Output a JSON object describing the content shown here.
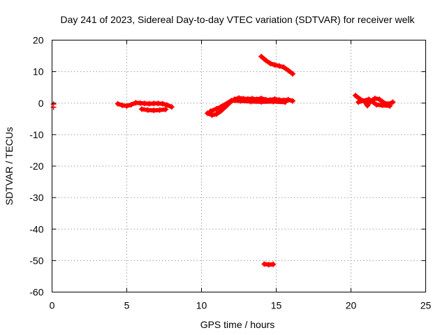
{
  "chart_data": {
    "type": "scatter",
    "title": "Day 241 of 2023, Sidereal Day-to-day VTEC variation (SDTVAR) for receiver welk",
    "xlabel": "GPS time / hours",
    "ylabel": "SDTVAR / TECUs",
    "xlim": [
      0,
      25
    ],
    "ylim": [
      -60,
      20
    ],
    "xticks": [
      0,
      5,
      10,
      15,
      20,
      25
    ],
    "yticks": [
      -60,
      -50,
      -40,
      -30,
      -20,
      -10,
      0,
      10,
      20
    ],
    "grid": true,
    "legend": "none",
    "marker_color": "#ff0000",
    "series": [
      {
        "points": [
          [
            0.1,
            -0.3
          ],
          [
            0.1,
            -1.3
          ],
          [
            4.4,
            -0.2
          ],
          [
            4.7,
            -0.7
          ],
          [
            5.0,
            -0.9
          ],
          [
            5.3,
            -0.5
          ],
          [
            5.6,
            0.1
          ],
          [
            5.9,
            0.0
          ],
          [
            6.2,
            -0.1
          ],
          [
            6.5,
            -0.2
          ],
          [
            6.8,
            -0.1
          ],
          [
            7.1,
            -0.1
          ],
          [
            7.4,
            -0.2
          ],
          [
            7.7,
            -0.6
          ],
          [
            8.0,
            -1.2
          ],
          [
            6.0,
            -1.9
          ],
          [
            6.4,
            -2.2
          ],
          [
            6.8,
            -2.3
          ],
          [
            7.2,
            -2.2
          ],
          [
            7.6,
            -2.0
          ],
          [
            10.4,
            -3.2
          ],
          [
            10.7,
            -3.8
          ],
          [
            11.0,
            -3.5
          ],
          [
            11.3,
            -2.5
          ],
          [
            11.6,
            -1.2
          ],
          [
            11.9,
            0.2
          ],
          [
            12.2,
            1.2
          ],
          [
            12.5,
            1.6
          ],
          [
            12.8,
            1.4
          ],
          [
            13.1,
            1.3
          ],
          [
            13.4,
            1.4
          ],
          [
            13.7,
            1.2
          ],
          [
            14.0,
            1.5
          ],
          [
            14.3,
            1.1
          ],
          [
            14.6,
            1.0
          ],
          [
            14.9,
            1.3
          ],
          [
            15.2,
            1.0
          ],
          [
            15.5,
            0.9
          ],
          [
            15.8,
            1.1
          ],
          [
            16.1,
            0.7
          ],
          [
            10.6,
            -2.6
          ],
          [
            11.0,
            -1.8
          ],
          [
            11.3,
            -1.2
          ],
          [
            12.0,
            0.8
          ],
          [
            12.6,
            0.7
          ],
          [
            13.3,
            0.5
          ],
          [
            14.0,
            0.4
          ],
          [
            14.8,
            0.5
          ],
          [
            15.6,
            0.3
          ],
          [
            14.0,
            14.8
          ],
          [
            14.3,
            13.6
          ],
          [
            14.6,
            12.6
          ],
          [
            14.9,
            12.1
          ],
          [
            15.2,
            11.8
          ],
          [
            15.5,
            11.4
          ],
          [
            15.8,
            10.4
          ],
          [
            16.1,
            9.3
          ],
          [
            14.2,
            -51.1
          ],
          [
            14.5,
            -51.3
          ],
          [
            14.8,
            -51.2
          ],
          [
            20.3,
            2.4
          ],
          [
            20.6,
            1.3
          ],
          [
            20.9,
            0.6
          ],
          [
            21.1,
            -0.8
          ],
          [
            21.3,
            0.6
          ],
          [
            21.6,
            1.5
          ],
          [
            21.9,
            1.2
          ],
          [
            22.2,
            0.1
          ],
          [
            22.5,
            -0.3
          ],
          [
            22.8,
            0.3
          ],
          [
            20.5,
            0.3
          ],
          [
            21.2,
            1.2
          ],
          [
            21.7,
            -0.5
          ],
          [
            22.1,
            -0.7
          ],
          [
            22.6,
            -0.9
          ]
        ]
      }
    ],
    "lines": [
      [
        [
          4.4,
          -0.2
        ],
        [
          4.7,
          -0.7
        ],
        [
          5.0,
          -0.9
        ],
        [
          5.3,
          -0.5
        ],
        [
          5.6,
          0.1
        ],
        [
          5.9,
          0.0
        ],
        [
          6.2,
          -0.1
        ],
        [
          6.5,
          -0.2
        ],
        [
          6.8,
          -0.1
        ],
        [
          7.1,
          -0.1
        ],
        [
          7.4,
          -0.2
        ],
        [
          7.7,
          -0.6
        ],
        [
          8.0,
          -1.2
        ]
      ],
      [
        [
          6.0,
          -1.9
        ],
        [
          6.4,
          -2.2
        ],
        [
          6.8,
          -2.3
        ],
        [
          7.2,
          -2.2
        ],
        [
          7.6,
          -2.0
        ]
      ],
      [
        [
          10.4,
          -3.2
        ],
        [
          10.7,
          -3.8
        ],
        [
          11.0,
          -3.5
        ],
        [
          11.3,
          -2.5
        ],
        [
          11.6,
          -1.2
        ],
        [
          11.9,
          0.2
        ],
        [
          12.2,
          1.2
        ],
        [
          12.5,
          1.6
        ],
        [
          12.8,
          1.4
        ],
        [
          13.1,
          1.3
        ],
        [
          13.4,
          1.4
        ],
        [
          13.7,
          1.2
        ],
        [
          14.0,
          1.5
        ],
        [
          14.3,
          1.1
        ],
        [
          14.6,
          1.0
        ],
        [
          14.9,
          1.3
        ],
        [
          15.2,
          1.0
        ],
        [
          15.5,
          0.9
        ],
        [
          15.8,
          1.1
        ],
        [
          16.1,
          0.7
        ]
      ],
      [
        [
          10.6,
          -2.6
        ],
        [
          11.0,
          -1.8
        ],
        [
          11.3,
          -1.2
        ],
        [
          12.0,
          0.8
        ],
        [
          12.6,
          0.7
        ],
        [
          13.3,
          0.5
        ],
        [
          14.0,
          0.4
        ],
        [
          14.8,
          0.5
        ],
        [
          15.6,
          0.3
        ]
      ],
      [
        [
          14.0,
          14.8
        ],
        [
          14.3,
          13.6
        ],
        [
          14.6,
          12.6
        ],
        [
          14.9,
          12.1
        ],
        [
          15.2,
          11.8
        ],
        [
          15.5,
          11.4
        ],
        [
          15.8,
          10.4
        ],
        [
          16.1,
          9.3
        ]
      ],
      [
        [
          14.2,
          -51.1
        ],
        [
          14.5,
          -51.3
        ],
        [
          14.8,
          -51.2
        ]
      ],
      [
        [
          20.3,
          2.4
        ],
        [
          20.6,
          1.3
        ],
        [
          20.9,
          0.6
        ],
        [
          21.1,
          -0.8
        ],
        [
          21.3,
          0.6
        ],
        [
          21.6,
          1.5
        ],
        [
          21.9,
          1.2
        ],
        [
          22.2,
          0.1
        ],
        [
          22.5,
          -0.3
        ],
        [
          22.8,
          0.3
        ]
      ],
      [
        [
          20.5,
          0.3
        ],
        [
          21.2,
          1.2
        ],
        [
          21.7,
          -0.5
        ],
        [
          22.1,
          -0.7
        ],
        [
          22.6,
          -0.9
        ]
      ]
    ]
  }
}
